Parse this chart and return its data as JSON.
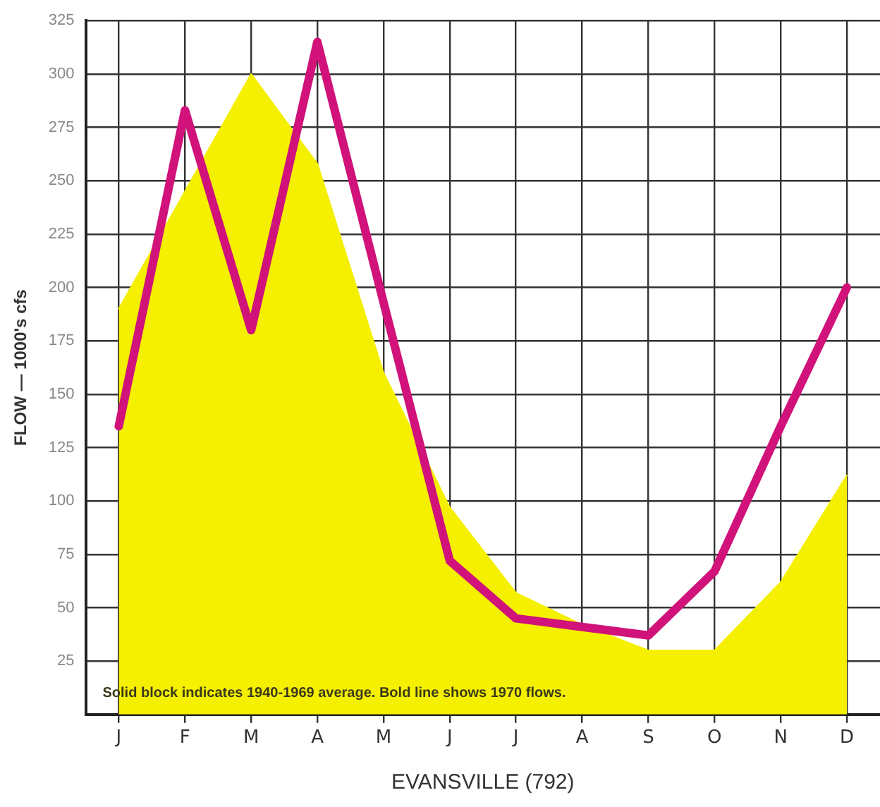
{
  "chart_data": {
    "type": "area",
    "xlabel": "EVANSVILLE (792)",
    "ylabel": "FLOW — 1000's cfs",
    "annotations": [
      "Solid block indicates 1940-1969 average. Bold line shows 1970 flows."
    ],
    "categories": [
      "J",
      "F",
      "M",
      "A",
      "M",
      "J",
      "J",
      "A",
      "S",
      "O",
      "N",
      "D"
    ],
    "series": [
      {
        "type": "area",
        "color": "#f5ef00",
        "values": [
          190,
          245,
          300,
          258,
          160,
          97,
          57,
          42,
          30,
          30,
          62,
          112
        ]
      },
      {
        "type": "line",
        "color": "#d0127a",
        "values": [
          135,
          283,
          180,
          315,
          193,
          72,
          45,
          41,
          37,
          67,
          135,
          200
        ]
      }
    ],
    "ylim": [
      0,
      325
    ],
    "yticks": [
      25,
      50,
      75,
      100,
      125,
      150,
      175,
      200,
      225,
      250,
      275,
      300,
      325
    ],
    "grid": true,
    "legend": false,
    "marker": "none",
    "line_style": "solid"
  }
}
